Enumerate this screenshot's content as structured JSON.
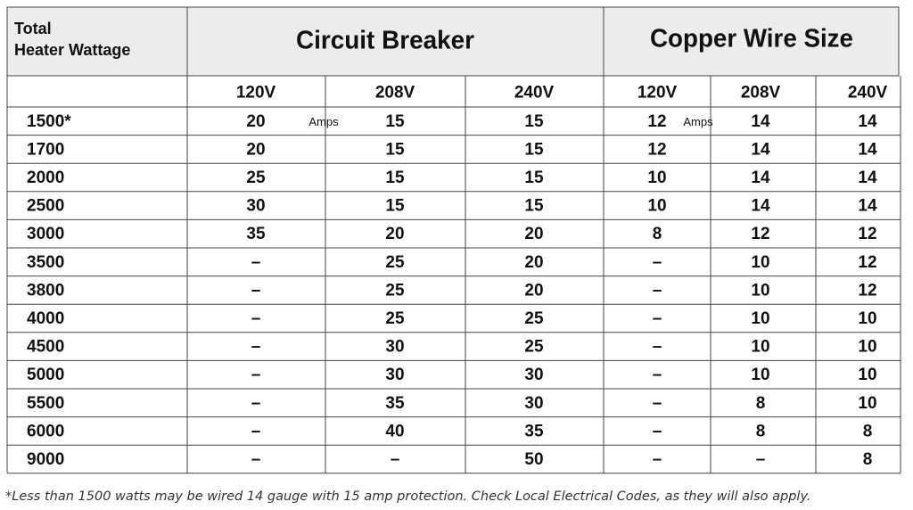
{
  "table": {
    "corner": [
      "Total",
      "Heater Wattage"
    ],
    "groups": [
      "Circuit Breaker",
      "Copper Wire Size"
    ],
    "voltages": [
      "120V",
      "208V",
      "240V",
      "120V",
      "208V",
      "240V"
    ],
    "units": [
      "Amps",
      "Amps"
    ],
    "rows": [
      [
        "1500*",
        "20",
        "15",
        "15",
        "12",
        "14",
        "14"
      ],
      [
        "1700",
        "20",
        "15",
        "15",
        "12",
        "14",
        "14"
      ],
      [
        "2000",
        "25",
        "15",
        "15",
        "10",
        "14",
        "14"
      ],
      [
        "2500",
        "30",
        "15",
        "15",
        "10",
        "14",
        "14"
      ],
      [
        "3000",
        "35",
        "20",
        "20",
        "8",
        "12",
        "12"
      ],
      [
        "3500",
        "–",
        "25",
        "20",
        "–",
        "10",
        "12"
      ],
      [
        "3800",
        "–",
        "25",
        "20",
        "–",
        "10",
        "12"
      ],
      [
        "4000",
        "–",
        "25",
        "25",
        "–",
        "10",
        "10"
      ],
      [
        "4500",
        "–",
        "30",
        "25",
        "–",
        "10",
        "10"
      ],
      [
        "5000",
        "–",
        "30",
        "30",
        "–",
        "10",
        "10"
      ],
      [
        "5500",
        "–",
        "35",
        "30",
        "–",
        "8",
        "10"
      ],
      [
        "6000",
        "–",
        "40",
        "35",
        "–",
        "8",
        "8"
      ],
      [
        "9000",
        "–",
        "–",
        "50",
        "–",
        "–",
        "8"
      ]
    ]
  },
  "footnote": "*Less than 1500 watts may be wired 14 gauge with 15 amp protection. Check Local Electrical Codes, as they will also apply."
}
